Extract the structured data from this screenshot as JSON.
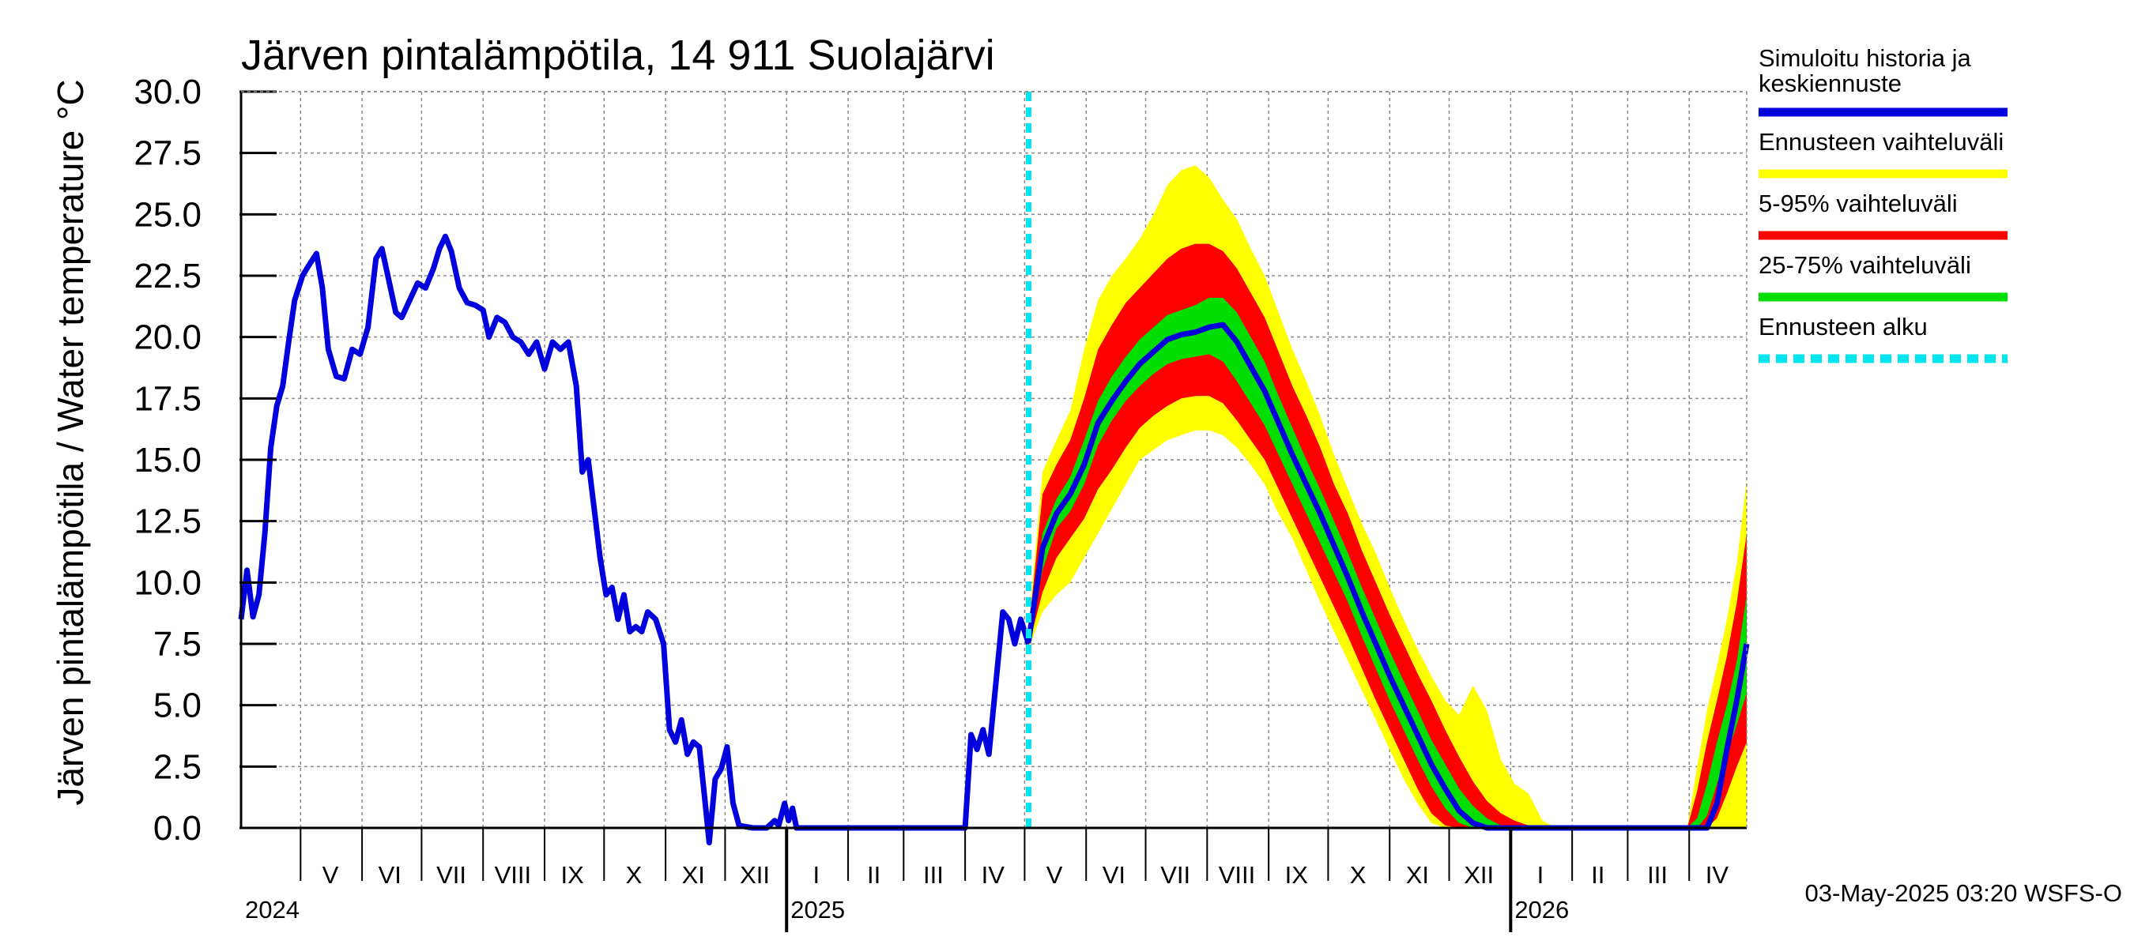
{
  "chart_data": {
    "type": "area",
    "title": "Järven pintalämpötila, 14 911 Suolajärvi",
    "ylabel": "Järven pintalämpötila / Water temperature °C",
    "xlabel": "",
    "ylim": [
      0,
      30
    ],
    "yticks": [
      "0.0",
      "2.5",
      "5.0",
      "7.5",
      "10.0",
      "12.5",
      "15.0",
      "17.5",
      "20.0",
      "22.5",
      "25.0",
      "27.5",
      "30.0"
    ],
    "x_range": [
      "2024-04-01",
      "2026-04-30"
    ],
    "month_labels": [
      {
        "date": "2024-04-15",
        "label": ""
      },
      {
        "date": "2024-05-16",
        "label": "V"
      },
      {
        "date": "2024-06-15",
        "label": "VI"
      },
      {
        "date": "2024-07-16",
        "label": "VII"
      },
      {
        "date": "2024-08-16",
        "label": "VIII"
      },
      {
        "date": "2024-09-15",
        "label": "IX"
      },
      {
        "date": "2024-10-16",
        "label": "X"
      },
      {
        "date": "2024-11-15",
        "label": "XI"
      },
      {
        "date": "2024-12-16",
        "label": "XII"
      },
      {
        "date": "2025-01-16",
        "label": "I"
      },
      {
        "date": "2025-02-14",
        "label": "II"
      },
      {
        "date": "2025-03-16",
        "label": "III"
      },
      {
        "date": "2025-04-15",
        "label": "IV"
      },
      {
        "date": "2025-05-16",
        "label": "V"
      },
      {
        "date": "2025-06-15",
        "label": "VI"
      },
      {
        "date": "2025-07-16",
        "label": "VII"
      },
      {
        "date": "2025-08-16",
        "label": "VIII"
      },
      {
        "date": "2025-09-15",
        "label": "IX"
      },
      {
        "date": "2025-10-16",
        "label": "X"
      },
      {
        "date": "2025-11-15",
        "label": "XI"
      },
      {
        "date": "2025-12-16",
        "label": "XII"
      },
      {
        "date": "2026-01-16",
        "label": "I"
      },
      {
        "date": "2026-02-14",
        "label": "II"
      },
      {
        "date": "2026-03-16",
        "label": "III"
      },
      {
        "date": "2026-04-15",
        "label": "IV"
      }
    ],
    "year_labels": [
      {
        "date": "2024-04-01",
        "label": "2024"
      },
      {
        "date": "2025-01-01",
        "label": "2025"
      },
      {
        "date": "2026-01-01",
        "label": "2026"
      }
    ],
    "forecast_start": "2025-05-03",
    "history": {
      "name": "Simuloitu historia ja keskiennuste",
      "points": [
        [
          "2024-04-01",
          8.5
        ],
        [
          "2024-04-04",
          10.5
        ],
        [
          "2024-04-07",
          8.6
        ],
        [
          "2024-04-10",
          9.5
        ],
        [
          "2024-04-13",
          12.0
        ],
        [
          "2024-04-16",
          15.5
        ],
        [
          "2024-04-19",
          17.2
        ],
        [
          "2024-04-22",
          18.0
        ],
        [
          "2024-04-25",
          19.8
        ],
        [
          "2024-04-28",
          21.5
        ],
        [
          "2024-05-02",
          22.5
        ],
        [
          "2024-05-05",
          22.9
        ],
        [
          "2024-05-09",
          23.4
        ],
        [
          "2024-05-12",
          22.0
        ],
        [
          "2024-05-15",
          19.5
        ],
        [
          "2024-05-19",
          18.4
        ],
        [
          "2024-05-23",
          18.3
        ],
        [
          "2024-05-27",
          19.5
        ],
        [
          "2024-05-31",
          19.3
        ],
        [
          "2024-06-04",
          20.4
        ],
        [
          "2024-06-08",
          23.2
        ],
        [
          "2024-06-11",
          23.6
        ],
        [
          "2024-06-14",
          22.5
        ],
        [
          "2024-06-18",
          21.0
        ],
        [
          "2024-06-21",
          20.8
        ],
        [
          "2024-06-25",
          21.5
        ],
        [
          "2024-06-29",
          22.2
        ],
        [
          "2024-07-03",
          22.0
        ],
        [
          "2024-07-07",
          22.8
        ],
        [
          "2024-07-10",
          23.6
        ],
        [
          "2024-07-13",
          24.1
        ],
        [
          "2024-07-16",
          23.5
        ],
        [
          "2024-07-20",
          22.0
        ],
        [
          "2024-07-24",
          21.4
        ],
        [
          "2024-07-28",
          21.3
        ],
        [
          "2024-08-01",
          21.1
        ],
        [
          "2024-08-04",
          20.0
        ],
        [
          "2024-08-08",
          20.8
        ],
        [
          "2024-08-12",
          20.6
        ],
        [
          "2024-08-16",
          20.0
        ],
        [
          "2024-08-20",
          19.8
        ],
        [
          "2024-08-24",
          19.3
        ],
        [
          "2024-08-28",
          19.8
        ],
        [
          "2024-09-01",
          18.7
        ],
        [
          "2024-09-05",
          19.8
        ],
        [
          "2024-09-09",
          19.5
        ],
        [
          "2024-09-13",
          19.8
        ],
        [
          "2024-09-17",
          18.0
        ],
        [
          "2024-09-20",
          14.5
        ],
        [
          "2024-09-23",
          15.0
        ],
        [
          "2024-09-26",
          13.0
        ],
        [
          "2024-09-29",
          11.0
        ],
        [
          "2024-10-02",
          9.5
        ],
        [
          "2024-10-05",
          9.8
        ],
        [
          "2024-10-08",
          8.5
        ],
        [
          "2024-10-11",
          9.5
        ],
        [
          "2024-10-14",
          8.0
        ],
        [
          "2024-10-17",
          8.2
        ],
        [
          "2024-10-20",
          8.0
        ],
        [
          "2024-10-23",
          8.8
        ],
        [
          "2024-10-27",
          8.5
        ],
        [
          "2024-10-31",
          7.5
        ],
        [
          "2024-11-03",
          4.0
        ],
        [
          "2024-11-06",
          3.5
        ],
        [
          "2024-11-09",
          4.4
        ],
        [
          "2024-11-12",
          3.0
        ],
        [
          "2024-11-15",
          3.5
        ],
        [
          "2024-11-18",
          3.3
        ],
        [
          "2024-11-21",
          1.0
        ],
        [
          "2024-11-23",
          -0.6
        ],
        [
          "2024-11-26",
          2.0
        ],
        [
          "2024-11-29",
          2.4
        ],
        [
          "2024-12-02",
          3.3
        ],
        [
          "2024-12-05",
          1.0
        ],
        [
          "2024-12-08",
          0.1
        ],
        [
          "2024-12-15",
          0.0
        ],
        [
          "2024-12-22",
          0.0
        ],
        [
          "2024-12-26",
          0.3
        ],
        [
          "2024-12-28",
          0.1
        ],
        [
          "2024-12-31",
          1.0
        ],
        [
          "2025-01-02",
          0.3
        ],
        [
          "2025-01-04",
          0.8
        ],
        [
          "2025-01-06",
          0.0
        ],
        [
          "2025-04-01",
          0.0
        ],
        [
          "2025-04-04",
          3.8
        ],
        [
          "2025-04-07",
          3.2
        ],
        [
          "2025-04-10",
          4.0
        ],
        [
          "2025-04-13",
          3.0
        ],
        [
          "2025-04-16",
          5.5
        ],
        [
          "2025-04-20",
          8.8
        ],
        [
          "2025-04-23",
          8.5
        ],
        [
          "2025-04-26",
          7.5
        ],
        [
          "2025-04-29",
          8.5
        ],
        [
          "2025-05-03",
          7.5
        ]
      ]
    },
    "forecast": {
      "series": [
        {
          "name": "Ennusteen vaihteluväli",
          "color": "#ffff00"
        },
        {
          "name": "5-95% vaihteluväli",
          "color": "#ff0000"
        },
        {
          "name": "25-75% vaihteluväli",
          "color": "#00dd00"
        },
        {
          "name": "Simuloitu historia ja keskiennuste",
          "color": "#0000dd"
        }
      ],
      "points": [
        {
          "x": "2025-05-03",
          "min": 7.3,
          "p05": 7.4,
          "p25": 7.5,
          "mean": 7.6,
          "p75": 7.8,
          "p95": 8.0,
          "max": 8.2
        },
        {
          "x": "2025-05-10",
          "min": 8.8,
          "p05": 9.6,
          "p25": 10.5,
          "mean": 11.4,
          "p75": 12.0,
          "p95": 13.6,
          "max": 14.5
        },
        {
          "x": "2025-05-17",
          "min": 9.5,
          "p05": 11.0,
          "p25": 12.2,
          "mean": 12.8,
          "p75": 13.4,
          "p95": 14.8,
          "max": 15.8
        },
        {
          "x": "2025-05-24",
          "min": 10.0,
          "p05": 11.8,
          "p25": 12.9,
          "mean": 13.6,
          "p75": 14.3,
          "p95": 15.8,
          "max": 17.0
        },
        {
          "x": "2025-05-31",
          "min": 11.0,
          "p05": 12.6,
          "p25": 14.0,
          "mean": 14.8,
          "p75": 15.8,
          "p95": 17.5,
          "max": 19.5
        },
        {
          "x": "2025-06-07",
          "min": 12.0,
          "p05": 13.8,
          "p25": 15.6,
          "mean": 16.5,
          "p75": 17.4,
          "p95": 19.5,
          "max": 21.5
        },
        {
          "x": "2025-06-14",
          "min": 13.0,
          "p05": 14.6,
          "p25": 16.6,
          "mean": 17.4,
          "p75": 18.4,
          "p95": 20.5,
          "max": 22.5
        },
        {
          "x": "2025-06-21",
          "min": 14.0,
          "p05": 15.5,
          "p25": 17.4,
          "mean": 18.2,
          "p75": 19.2,
          "p95": 21.4,
          "max": 23.2
        },
        {
          "x": "2025-06-28",
          "min": 15.0,
          "p05": 16.3,
          "p25": 18.0,
          "mean": 18.9,
          "p75": 19.9,
          "p95": 22.0,
          "max": 24.0
        },
        {
          "x": "2025-07-05",
          "min": 15.4,
          "p05": 16.8,
          "p25": 18.5,
          "mean": 19.4,
          "p75": 20.4,
          "p95": 22.6,
          "max": 25.0
        },
        {
          "x": "2025-07-12",
          "min": 15.8,
          "p05": 17.2,
          "p25": 18.9,
          "mean": 19.9,
          "p75": 20.9,
          "p95": 23.2,
          "max": 26.2
        },
        {
          "x": "2025-07-19",
          "min": 16.0,
          "p05": 17.5,
          "p25": 19.1,
          "mean": 20.1,
          "p75": 21.1,
          "p95": 23.6,
          "max": 26.8
        },
        {
          "x": "2025-07-26",
          "min": 16.2,
          "p05": 17.6,
          "p25": 19.2,
          "mean": 20.2,
          "p75": 21.3,
          "p95": 23.8,
          "max": 27.0
        },
        {
          "x": "2025-08-02",
          "min": 16.2,
          "p05": 17.6,
          "p25": 19.3,
          "mean": 20.4,
          "p75": 21.6,
          "p95": 23.8,
          "max": 26.5
        },
        {
          "x": "2025-08-09",
          "min": 16.0,
          "p05": 17.3,
          "p25": 19.0,
          "mean": 20.5,
          "p75": 21.6,
          "p95": 23.5,
          "max": 25.6
        },
        {
          "x": "2025-08-16",
          "min": 15.5,
          "p05": 16.6,
          "p25": 18.2,
          "mean": 19.8,
          "p75": 21.0,
          "p95": 22.8,
          "max": 24.8
        },
        {
          "x": "2025-08-23",
          "min": 14.8,
          "p05": 15.8,
          "p25": 17.3,
          "mean": 18.8,
          "p75": 20.0,
          "p95": 21.8,
          "max": 23.6
        },
        {
          "x": "2025-08-30",
          "min": 14.0,
          "p05": 15.0,
          "p25": 16.4,
          "mean": 17.8,
          "p75": 19.0,
          "p95": 20.8,
          "max": 22.5
        },
        {
          "x": "2025-09-06",
          "min": 12.8,
          "p05": 13.8,
          "p25": 15.2,
          "mean": 16.5,
          "p75": 17.6,
          "p95": 19.4,
          "max": 21.0
        },
        {
          "x": "2025-09-13",
          "min": 11.8,
          "p05": 12.6,
          "p25": 14.0,
          "mean": 15.2,
          "p75": 16.3,
          "p95": 18.0,
          "max": 19.5
        },
        {
          "x": "2025-09-20",
          "min": 10.5,
          "p05": 11.4,
          "p25": 12.8,
          "mean": 14.0,
          "p75": 15.0,
          "p95": 16.8,
          "max": 18.2
        },
        {
          "x": "2025-09-27",
          "min": 9.2,
          "p05": 10.2,
          "p25": 11.6,
          "mean": 12.8,
          "p75": 13.8,
          "p95": 15.5,
          "max": 16.8
        },
        {
          "x": "2025-10-04",
          "min": 8.0,
          "p05": 9.0,
          "p25": 10.4,
          "mean": 11.5,
          "p75": 12.5,
          "p95": 14.0,
          "max": 15.2
        },
        {
          "x": "2025-10-11",
          "min": 6.8,
          "p05": 7.8,
          "p25": 9.2,
          "mean": 10.2,
          "p75": 11.2,
          "p95": 12.8,
          "max": 13.8
        },
        {
          "x": "2025-10-18",
          "min": 5.6,
          "p05": 6.5,
          "p25": 7.8,
          "mean": 8.8,
          "p75": 9.8,
          "p95": 11.3,
          "max": 12.4
        },
        {
          "x": "2025-10-25",
          "min": 4.4,
          "p05": 5.2,
          "p25": 6.5,
          "mean": 7.5,
          "p75": 8.5,
          "p95": 10.0,
          "max": 11.2
        },
        {
          "x": "2025-11-01",
          "min": 3.2,
          "p05": 4.0,
          "p25": 5.2,
          "mean": 6.2,
          "p75": 7.2,
          "p95": 8.7,
          "max": 9.8
        },
        {
          "x": "2025-11-08",
          "min": 2.0,
          "p05": 2.8,
          "p25": 4.0,
          "mean": 5.0,
          "p75": 6.0,
          "p95": 7.5,
          "max": 8.5
        },
        {
          "x": "2025-11-15",
          "min": 1.0,
          "p05": 1.6,
          "p25": 2.8,
          "mean": 3.8,
          "p75": 4.8,
          "p95": 6.3,
          "max": 7.3
        },
        {
          "x": "2025-11-22",
          "min": 0.2,
          "p05": 0.6,
          "p25": 1.7,
          "mean": 2.6,
          "p75": 3.6,
          "p95": 5.2,
          "max": 6.2
        },
        {
          "x": "2025-11-29",
          "min": 0.0,
          "p05": 0.1,
          "p25": 0.8,
          "mean": 1.6,
          "p75": 2.6,
          "p95": 4.0,
          "max": 5.2
        },
        {
          "x": "2025-12-06",
          "min": 0.0,
          "p05": 0.0,
          "p25": 0.2,
          "mean": 0.7,
          "p75": 1.6,
          "p95": 2.9,
          "max": 4.6
        },
        {
          "x": "2025-12-13",
          "min": 0.0,
          "p05": 0.0,
          "p25": 0.0,
          "mean": 0.2,
          "p75": 0.9,
          "p95": 1.9,
          "max": 5.8
        },
        {
          "x": "2025-12-20",
          "min": 0.0,
          "p05": 0.0,
          "p25": 0.0,
          "mean": 0.0,
          "p75": 0.4,
          "p95": 1.1,
          "max": 4.8
        },
        {
          "x": "2025-12-27",
          "min": 0.0,
          "p05": 0.0,
          "p25": 0.0,
          "mean": 0.0,
          "p75": 0.1,
          "p95": 0.6,
          "max": 2.8
        },
        {
          "x": "2026-01-03",
          "min": 0.0,
          "p05": 0.0,
          "p25": 0.0,
          "mean": 0.0,
          "p75": 0.0,
          "p95": 0.3,
          "max": 1.8
        },
        {
          "x": "2026-01-10",
          "min": 0.0,
          "p05": 0.0,
          "p25": 0.0,
          "mean": 0.0,
          "p75": 0.0,
          "p95": 0.1,
          "max": 1.4
        },
        {
          "x": "2026-01-17",
          "min": 0.0,
          "p05": 0.0,
          "p25": 0.0,
          "mean": 0.0,
          "p75": 0.0,
          "p95": 0.0,
          "max": 0.3
        },
        {
          "x": "2026-01-24",
          "min": 0.0,
          "p05": 0.0,
          "p25": 0.0,
          "mean": 0.0,
          "p75": 0.0,
          "p95": 0.0,
          "max": 0.0
        },
        {
          "x": "2026-03-31",
          "min": 0.0,
          "p05": 0.0,
          "p25": 0.0,
          "mean": 0.0,
          "p75": 0.0,
          "p95": 0.0,
          "max": 0.0
        },
        {
          "x": "2026-04-05",
          "min": 0.0,
          "p05": 0.0,
          "p25": 0.0,
          "mean": 0.0,
          "p75": 0.4,
          "p95": 1.5,
          "max": 2.5
        },
        {
          "x": "2026-04-10",
          "min": 0.0,
          "p05": 0.0,
          "p25": 0.5,
          "mean": 0.0,
          "p75": 1.8,
          "p95": 3.5,
          "max": 4.8
        },
        {
          "x": "2026-04-15",
          "min": 0.0,
          "p05": 0.4,
          "p25": 1.8,
          "mean": 1.0,
          "p75": 3.5,
          "p95": 5.2,
          "max": 6.6
        },
        {
          "x": "2026-04-20",
          "min": 0.0,
          "p05": 1.4,
          "p25": 3.0,
          "mean": 3.2,
          "p75": 5.0,
          "p95": 7.0,
          "max": 8.5
        },
        {
          "x": "2026-04-25",
          "min": 0.0,
          "p05": 2.5,
          "p25": 4.2,
          "mean": 5.2,
          "p75": 6.8,
          "p95": 9.2,
          "max": 10.8
        },
        {
          "x": "2026-04-30",
          "min": 0.0,
          "p05": 3.5,
          "p25": 5.5,
          "mean": 7.5,
          "p75": 9.5,
          "p95": 12.0,
          "max": 14.2
        }
      ]
    },
    "legend": [
      {
        "label": "Simuloitu historia ja keskiennuste",
        "color": "#0000dd",
        "style": "solid"
      },
      {
        "label": "Ennusteen vaihteluväli",
        "color": "#ffff00",
        "style": "solid"
      },
      {
        "label": "5-95% vaihteluväli",
        "color": "#ff0000",
        "style": "solid"
      },
      {
        "label": "25-75% vaihteluväli",
        "color": "#00dd00",
        "style": "solid"
      },
      {
        "label": "Ennusteen alku",
        "color": "#00e5ee",
        "style": "dashed"
      }
    ],
    "legend_position": "right",
    "grid": true,
    "footer": "03-May-2025 03:20 WSFS-O"
  }
}
